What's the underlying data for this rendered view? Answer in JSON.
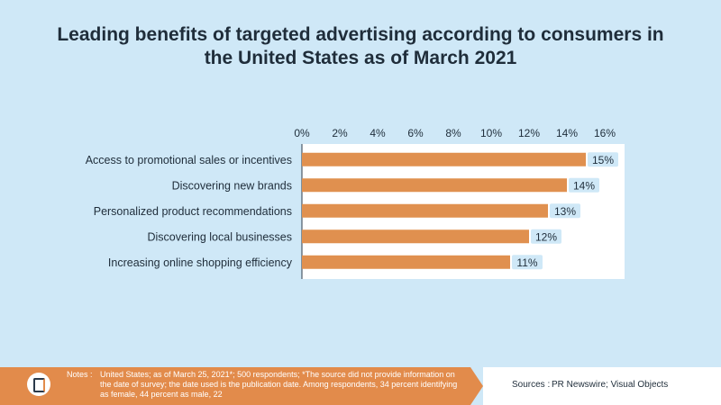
{
  "chart_data": {
    "type": "bar",
    "orientation": "horizontal",
    "title": "Leading benefits of targeted advertising according to consumers in the United States as of March 2021",
    "categories": [
      "Access to promotional sales or incentives",
      "Discovering new brands",
      "Personalized product recommendations",
      "Discovering local businesses",
      "Increasing online shopping efficiency"
    ],
    "values": [
      15,
      14,
      13,
      12,
      11
    ],
    "value_labels": [
      "15%",
      "14%",
      "13%",
      "12%",
      "11%"
    ],
    "xlim": [
      0,
      16
    ],
    "x_ticks": [
      0,
      2,
      4,
      6,
      8,
      10,
      12,
      14,
      16
    ],
    "x_tick_labels": [
      "0%",
      "2%",
      "4%",
      "6%",
      "8%",
      "10%",
      "12%",
      "14%",
      "16%"
    ],
    "axis_position": "top",
    "grid": false,
    "legend": "none",
    "bar_color": "#e0904f",
    "label_bg_color": "#cfe8f7"
  },
  "footer": {
    "notes_label": "Notes :",
    "notes_text": "United States; as of March 25, 2021*; 500 respondents; *The source did not provide information on the date of survey; the date used is the publication date. Among respondents, 34 percent identifying as female, 44 percent as male, 22",
    "sources_label": "Sources :",
    "sources_text": "PR Newswire; Visual Objects"
  },
  "colors": {
    "background": "#cfe8f7",
    "footer_accent": "#e28b4b",
    "text": "#1f2d3a"
  },
  "icons": {
    "logo": "statista-logo-icon"
  }
}
